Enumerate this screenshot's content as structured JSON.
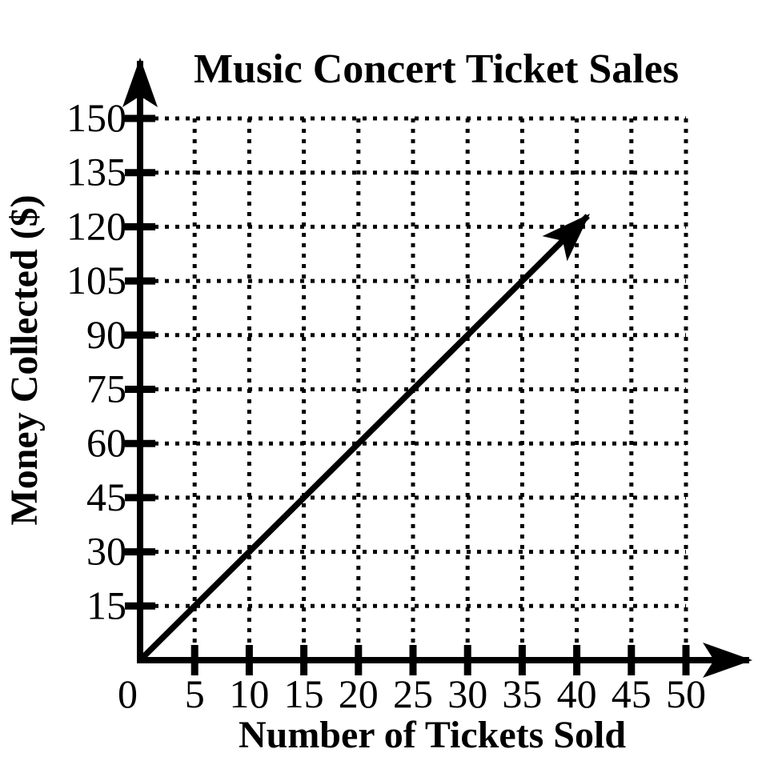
{
  "colors": {
    "ink": "#000000",
    "paper": "#ffffff"
  },
  "chart_data": {
    "type": "line",
    "title": "Music Concert Ticket Sales",
    "xlabel": "Number of Tickets Sold",
    "ylabel": "Money Collected ($)",
    "origin_label": "0",
    "xlim": [
      0,
      50
    ],
    "ylim": [
      0,
      150
    ],
    "x_ticks": [
      5,
      10,
      15,
      20,
      25,
      30,
      35,
      40,
      45,
      50
    ],
    "y_ticks": [
      15,
      30,
      45,
      60,
      75,
      90,
      105,
      120,
      135,
      150
    ],
    "grid": "dotted",
    "legend": "none",
    "series": [
      {
        "name": "ticket-sales-ray",
        "slope_dollars_per_ticket": 3,
        "x": [
          0,
          5,
          10,
          15,
          20,
          25,
          30,
          35,
          40
        ],
        "y": [
          0,
          15,
          30,
          45,
          60,
          75,
          90,
          105,
          120
        ],
        "ray_start": {
          "x": 0,
          "y": 0
        },
        "ray_end": {
          "x": 41,
          "y": 123
        },
        "arrow_at_end": true
      }
    ]
  }
}
